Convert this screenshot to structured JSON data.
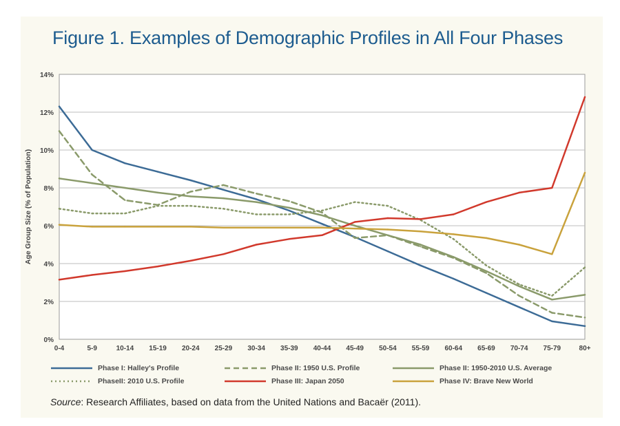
{
  "figure": {
    "title": "Figure 1. Examples of Demographic Profiles in All Four Phases",
    "source_label": "Source",
    "source_text": ": Research Affiliates, based on data from the United Nations and Bacaër (2011)."
  },
  "chart_data": {
    "type": "line",
    "title": "Figure 1. Examples of Demographic Profiles in All Four Phases",
    "xlabel": "",
    "ylabel": "Age Group Size (% of Population)",
    "categories": [
      "0-4",
      "5-9",
      "10-14",
      "15-19",
      "20-24",
      "25-29",
      "30-34",
      "35-39",
      "40-44",
      "45-49",
      "50-54",
      "55-59",
      "60-64",
      "65-69",
      "70-74",
      "75-79",
      "80+"
    ],
    "ylim": [
      0,
      14
    ],
    "yticks": [
      "0%",
      "2%",
      "4%",
      "6%",
      "8%",
      "10%",
      "12%",
      "14%"
    ],
    "grid": true,
    "legend_position": "bottom",
    "series": [
      {
        "name": "Phase I: Halley's Profile",
        "color": "#3c6b96",
        "style": "solid",
        "values": [
          12.3,
          10.0,
          9.3,
          8.85,
          8.4,
          7.9,
          7.4,
          6.8,
          6.1,
          5.4,
          4.65,
          3.9,
          3.2,
          2.45,
          1.7,
          0.95,
          0.7
        ]
      },
      {
        "name": "Phase II: 1950 U.S. Profile",
        "color": "#8a9a6a",
        "style": "dashed",
        "values": [
          11.0,
          8.7,
          7.35,
          7.1,
          7.8,
          8.15,
          7.7,
          7.3,
          6.7,
          5.35,
          5.5,
          4.9,
          4.3,
          3.5,
          2.3,
          1.4,
          1.15
        ]
      },
      {
        "name": "Phase II: 1950-2010 U.S. Average",
        "color": "#8a9a6a",
        "style": "solid",
        "values": [
          8.5,
          8.25,
          8.0,
          7.75,
          7.55,
          7.45,
          7.25,
          6.95,
          6.55,
          6.0,
          5.5,
          5.0,
          4.35,
          3.6,
          2.8,
          2.1,
          2.35
        ]
      },
      {
        "name": "PhaseII: 2010 U.S. Profile",
        "color": "#8a9a6a",
        "style": "dotted",
        "values": [
          6.9,
          6.65,
          6.65,
          7.05,
          7.05,
          6.9,
          6.6,
          6.6,
          6.8,
          7.25,
          7.05,
          6.3,
          5.3,
          3.9,
          2.9,
          2.3,
          3.8
        ]
      },
      {
        "name": "Phase III: Japan 2050",
        "color": "#d1392c",
        "style": "solid",
        "values": [
          3.15,
          3.4,
          3.6,
          3.85,
          4.15,
          4.5,
          5.0,
          5.3,
          5.5,
          6.2,
          6.4,
          6.35,
          6.6,
          7.25,
          7.75,
          8.0,
          12.8
        ]
      },
      {
        "name": "Phase IV: Brave New World",
        "color": "#c9a23c",
        "style": "solid",
        "values": [
          6.05,
          5.95,
          5.95,
          5.95,
          5.95,
          5.9,
          5.9,
          5.9,
          5.9,
          5.85,
          5.8,
          5.7,
          5.55,
          5.35,
          5.0,
          4.5,
          8.8
        ]
      }
    ]
  }
}
